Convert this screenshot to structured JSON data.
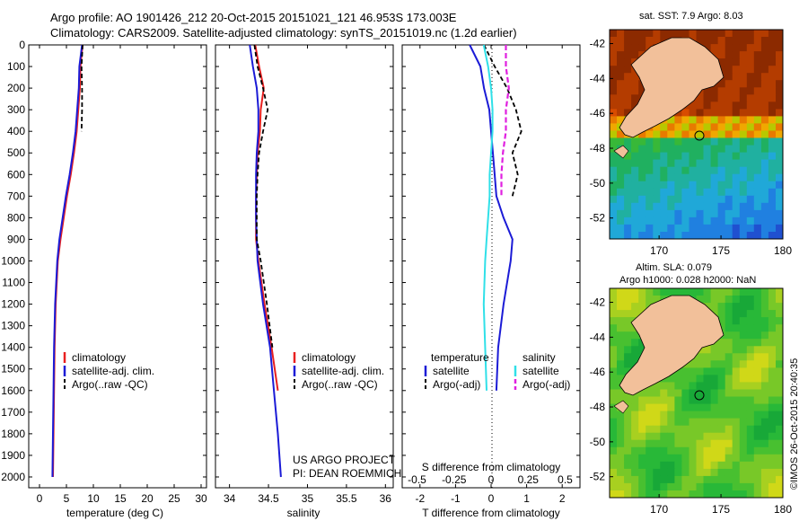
{
  "header": {
    "line1": "Argo profile: AO 1901426_212 20-Oct-2015 20151021_121 46.953S 173.003E",
    "line2": "Climatology: CARS2009. Satellite-adjusted climatology: synTS_20151019.nc (1.2d earlier)"
  },
  "depth_ticks": [
    "0",
    "100",
    "200",
    "300",
    "400",
    "500",
    "600",
    "700",
    "800",
    "900",
    "1000",
    "1100",
    "1200",
    "1300",
    "1400",
    "1500",
    "1600",
    "1700",
    "1800",
    "1900",
    "2000"
  ],
  "colors": {
    "climatology": "#e82020",
    "satellite": "#1b1bd6",
    "argo": "#000000",
    "sat_salinity": "#30e0e8",
    "argo_salinity_adj": "#e020e0",
    "land": "#f2c09a"
  },
  "panel_temp": {
    "xlabel": "temperature (deg C)",
    "xticks": [
      "0",
      "5",
      "10",
      "15",
      "20",
      "25",
      "30"
    ],
    "legend": [
      "climatology",
      "satellite-adj. clim.",
      "Argo(..raw -QC)"
    ]
  },
  "panel_sal": {
    "xlabel": "salinity",
    "xticks": [
      "34",
      "34.5",
      "35",
      "35.5",
      "36"
    ],
    "legend": [
      "climatology",
      "satellite-adj. clim.",
      "Argo(..raw -QC)"
    ],
    "credit1": "US ARGO PROJECT",
    "credit2": "PI: DEAN ROEMMICH"
  },
  "panel_diff": {
    "xlabel": "T difference from climatology",
    "top_label": "S difference from climatology",
    "xticks_T": [
      "-2",
      "-1",
      "0",
      "1",
      "2"
    ],
    "xticks_S": [
      "-0.5",
      "-0.25",
      "0",
      "0.25",
      "0.5"
    ],
    "legend_t_title": "temperature",
    "legend_s_title": "salinity",
    "legend_t": [
      "satellite",
      "Argo(-adj)"
    ],
    "legend_s": [
      "satellite",
      "Argo(-adj)"
    ]
  },
  "map_sst": {
    "title": "sat. SST: 7.9 Argo: 8.03",
    "yticks": [
      "-42",
      "-44",
      "-46",
      "-48",
      "-50",
      "-52"
    ],
    "xticks": [
      "170",
      "175",
      "180"
    ]
  },
  "map_sla": {
    "title1": "Altim. SLA: 0.079",
    "title2": "Argo h1000: 0.028 h2000: NaN",
    "yticks": [
      "-42",
      "-44",
      "-46",
      "-48",
      "-50",
      "-52"
    ],
    "xticks": [
      "170",
      "175",
      "180"
    ]
  },
  "stamp": "©IMOS 26-Oct-2015 20:40:35",
  "chart_data": [
    {
      "type": "line",
      "title": "",
      "xlabel": "temperature (deg C)",
      "ylabel": "",
      "xlim": [
        -2,
        31
      ],
      "ylim": [
        2050,
        0
      ],
      "depth": [
        0,
        100,
        200,
        300,
        400,
        500,
        600,
        700,
        800,
        900,
        1000,
        1200,
        1400,
        1600,
        1800,
        2000
      ],
      "series": [
        {
          "name": "climatology",
          "values": [
            8.0,
            7.6,
            7.5,
            7.2,
            6.9,
            6.4,
            5.8,
            5.1,
            4.5,
            3.9,
            3.4,
            3.0,
            2.8,
            2.7,
            2.6,
            2.5
          ]
        },
        {
          "name": "satellite-adj. clim.",
          "values": [
            7.9,
            7.4,
            7.3,
            7.0,
            6.7,
            6.2,
            5.6,
            4.9,
            4.3,
            3.7,
            3.3,
            2.9,
            2.7,
            2.6,
            2.5,
            2.4
          ]
        },
        {
          "name": "Argo(..raw -QC)",
          "values": [
            8.0,
            7.8,
            7.9,
            7.9,
            7.8,
            null,
            null,
            null,
            null,
            null,
            null,
            null,
            null,
            null,
            null,
            null
          ]
        }
      ]
    },
    {
      "type": "line",
      "title": "",
      "xlabel": "salinity",
      "ylabel": "",
      "xlim": [
        33.82,
        36.1
      ],
      "ylim": [
        2050,
        0
      ],
      "depth": [
        0,
        100,
        200,
        300,
        400,
        500,
        600,
        700,
        800,
        900,
        1000,
        1200,
        1400,
        1600,
        1800,
        2000
      ],
      "series": [
        {
          "name": "climatology",
          "values": [
            34.33,
            34.38,
            34.44,
            34.4,
            34.39,
            34.36,
            34.35,
            34.34,
            34.34,
            34.34,
            34.37,
            34.45,
            34.54,
            34.62,
            null,
            null
          ]
        },
        {
          "name": "satellite-adj. clim.",
          "values": [
            34.26,
            34.3,
            34.35,
            34.37,
            34.37,
            34.35,
            34.34,
            34.34,
            34.34,
            34.35,
            34.36,
            34.43,
            34.52,
            34.57,
            34.62,
            34.66
          ]
        },
        {
          "name": "Argo(..raw -QC)",
          "values": [
            34.32,
            34.36,
            34.43,
            34.49,
            34.43,
            34.38,
            34.36,
            34.35,
            34.35,
            34.35,
            34.4,
            34.48,
            34.55,
            null,
            null,
            null
          ]
        }
      ]
    },
    {
      "type": "line",
      "title": "",
      "xlabel": "T difference from climatology",
      "ylabel": "",
      "xlim_T": [
        -2.5,
        2.5
      ],
      "xlim_S": [
        -0.6,
        0.6
      ],
      "ylim": [
        2050,
        0
      ],
      "depth": [
        0,
        100,
        200,
        300,
        400,
        500,
        600,
        700,
        800,
        900,
        1000,
        1200,
        1400,
        1600
      ],
      "series": [
        {
          "name": "temperature satellite",
          "axis": "T",
          "values": [
            -0.6,
            -0.3,
            -0.2,
            -0.05,
            0.0,
            0.05,
            0.1,
            0.15,
            0.35,
            0.6,
            0.55,
            0.35,
            0.2,
            0.15
          ]
        },
        {
          "name": "temperature Argo(-adj)",
          "axis": "T",
          "values": [
            -0.2,
            0.1,
            0.45,
            0.7,
            0.85,
            0.6,
            0.75,
            0.6,
            null,
            null,
            null,
            null,
            null,
            null
          ]
        },
        {
          "name": "salinity satellite",
          "axis": "S",
          "values": [
            -0.05,
            -0.02,
            0.0,
            0.01,
            0.01,
            0.0,
            -0.01,
            -0.01,
            -0.02,
            -0.03,
            -0.04,
            -0.05,
            -0.04,
            -0.03
          ]
        },
        {
          "name": "salinity Argo(-adj)",
          "axis": "S",
          "values": [
            0.1,
            0.1,
            0.12,
            0.1,
            0.1,
            0.08,
            0.07,
            0.07,
            null,
            null,
            null,
            null,
            null,
            null
          ]
        }
      ]
    }
  ]
}
